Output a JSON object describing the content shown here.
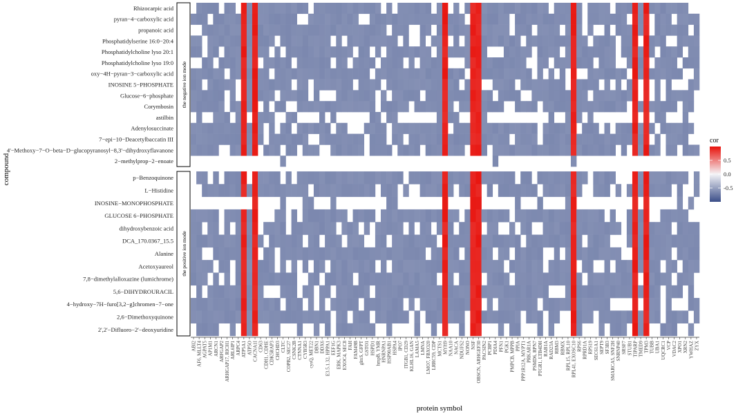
{
  "chart_data": {
    "type": "heatmap",
    "xlabel": "protein symbol",
    "ylabel": "compound",
    "legend": {
      "title": "cor",
      "position": "right",
      "range": [
        -1,
        1
      ],
      "ticks": [
        "0.5",
        "0.0",
        "-0.5"
      ],
      "tick_values": [
        0.5,
        0.0,
        -0.5
      ],
      "colors": {
        "low": "#3B4E88",
        "mid": "#F4F4F7",
        "high": "#E8120C"
      }
    },
    "panels": [
      {
        "strip": "the negative ion mode",
        "rows": [
          "Rhizocarpic acid",
          "pyran−4−carboxylic acid",
          "propanoic acid",
          "Phosphatidylserine 16:0−20:4",
          "Phosphatidylcholine lyso 20:1",
          "Phosphatidylcholine lyso 19:0",
          "oxy−4H−pyran−3−carboxylic acid",
          "INOSINE 5−PHOSPHATE",
          "Glucose−6−phosphate",
          "Corymbosin",
          "astilbin",
          "Adenylosuccinate",
          "7−epi−10−Deacetylbaccatin III",
          "4'−Methoxy−7−O−beta−D−glucopyranosyl−8,3'−dihydroxyflavanone",
          "2−methylprop−2−enoate"
        ]
      },
      {
        "strip": "the positive ion mode",
        "rows": [
          "p−Benzoquinone",
          "L−Histidine",
          "INOSINE−MONOPHOSPHATE",
          "GLUCOSE 6−PHOSPHATE",
          "dihydroxybenzoic acid",
          "DCA_170.0367_15.5",
          "Alanine",
          "Acetoxyaureol",
          "7,8−dimethylalloxazine (lumichrome)",
          "5,6−DIHYDROURACIL",
          "4−hydroxy−7H−furo[3,2−g]chromen−7−one",
          "2,6−Dimethoxyquinone",
          "2',2'−Difluoro−2'−deoxyuridine"
        ]
      }
    ],
    "columns": [
      "ABI2",
      "AF6, MLLT4",
      "AGPAT5",
      "AP1M1",
      "ARCN1",
      "ARFGAP2",
      "ARHGAP17, RICH1",
      "ARL6IP1",
      "ARPC4",
      "ATP5A1",
      "ATP5O",
      "CACNA1I",
      "CD63",
      "CDH1, CDHE",
      "CDK5RAP3",
      "CHCHD3",
      "CLTC",
      "COPB2, SEC27",
      "CSNK2B",
      "CTNNA1",
      "CYB5R3",
      "cysQ, MET22",
      "DBN1",
      "DDX6",
      "E3.5.1.32, HPPA1",
      "EEF1G",
      "ERK, MAPK3",
      "EXOC4, SEC8",
      "FAH",
      "FAM49B",
      "glmS, GFPT",
      "GSTO1",
      "HSPD1",
      "hmpB, YMR",
      "HNRNPA1",
      "HSP90AB1",
      "HSPA4",
      "IPO7",
      "ITGB1, CD29",
      "KLHL16, GAN",
      "LAMA5",
      "LMNA",
      "LMO7, FBXO20",
      "LRRC59, CDP",
      "MCTS1",
      "MYH9",
      "NAA10",
      "NACA",
      "NDUFS2",
      "NONO",
      "NSF",
      "OBSCN, ARHGEF30",
      "PACSIN2",
      "PCBP1",
      "PDIA4",
      "PFN1",
      "PGK1",
      "PMPCB, MPPB",
      "PPIA",
      "PPP1R12A, MYPT1",
      "PRKAR1A",
      "PSMD6, RPN7",
      "PTGR1, LTB4DH",
      "RAB1A",
      "RAD23A",
      "RBM3",
      "RBMX",
      "RPL15, RPL10",
      "RPL41, EXOSC10",
      "RPS6",
      "RPRD1A",
      "RPS19",
      "SEC61A1",
      "SEPT9",
      "SF3B3",
      "SMARCA5, SNF2H",
      "SNRNP40",
      "SRSF7",
      "STUB1",
      "TIPARP",
      "TMED9",
      "TPM3",
      "TUBB",
      "UBA1",
      "UQCRC1",
      "VCP",
      "VDAC2",
      "XPO1",
      "XRN2",
      "YWHAZ",
      "ZYX"
    ],
    "red_columns": [
      9,
      11,
      45,
      50,
      51,
      68,
      79,
      81
    ],
    "values_note": "Correlation heatmap; blue tiles ≈ -0.5 to -0.7, red tiles ≈ 0.8 to 1.0, white tiles ≈ 0."
  }
}
